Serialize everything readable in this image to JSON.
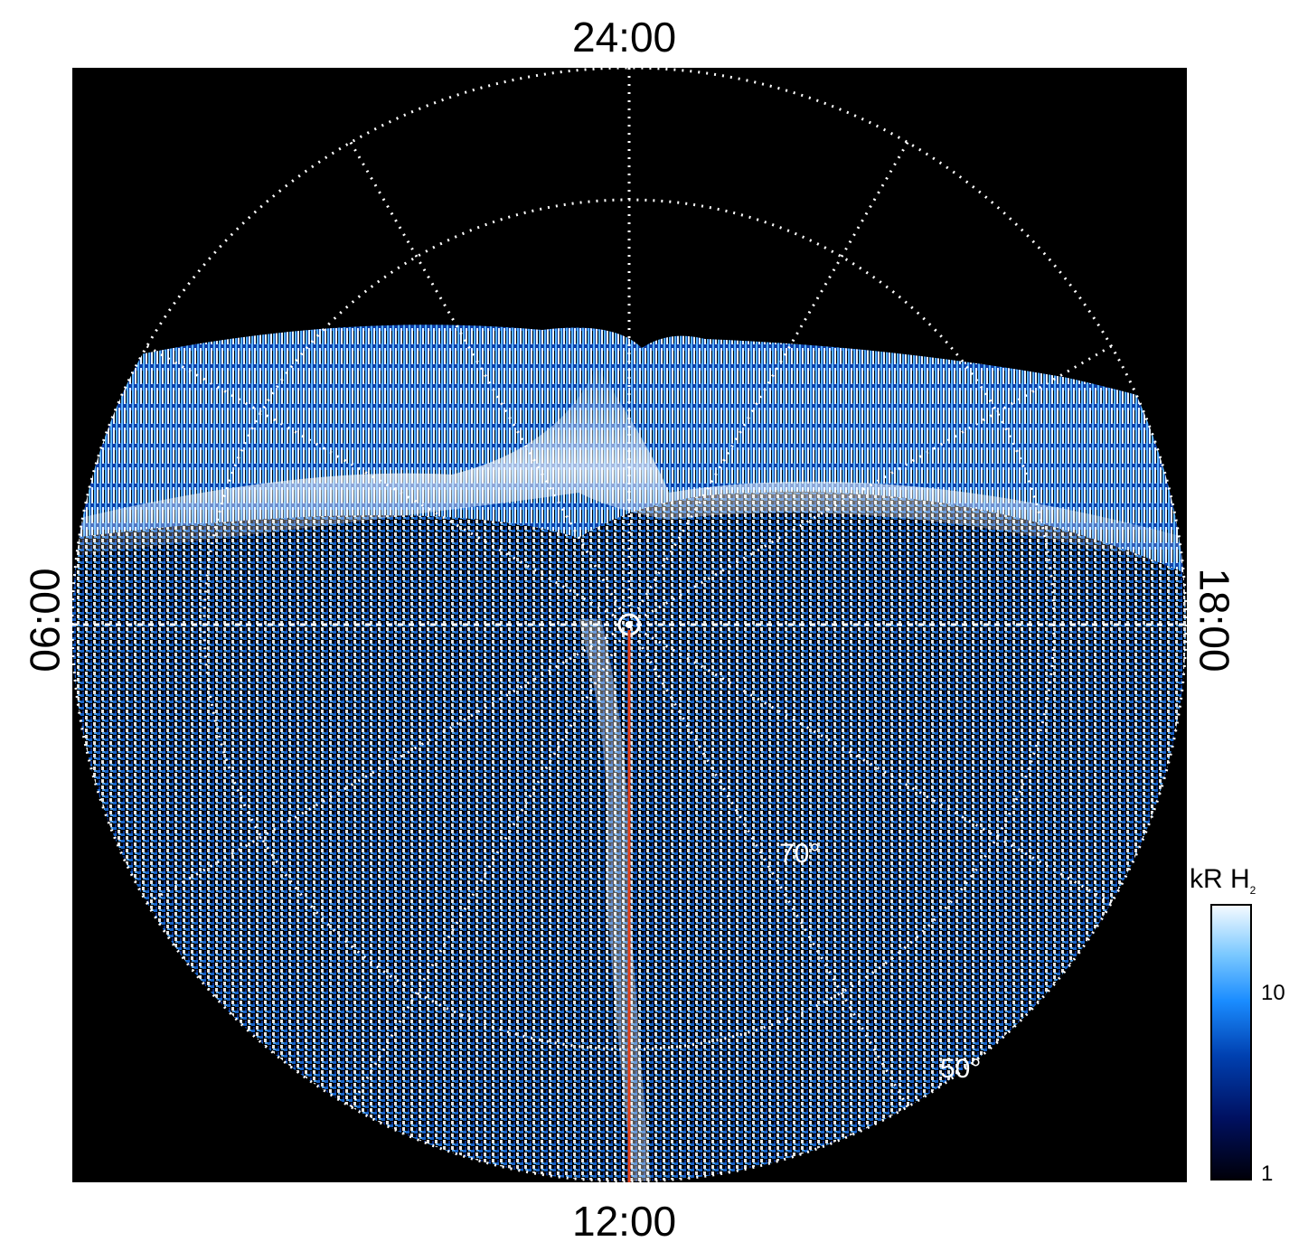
{
  "mlt_labels": {
    "top": "24:00",
    "bottom": "12:00",
    "left": "06:00",
    "right": "18:00"
  },
  "latitude_labels": {
    "inner": "70°",
    "outer": "50°"
  },
  "colorbar": {
    "title": "kR H",
    "title_subscript": "2",
    "ticks": [
      "10",
      "1"
    ],
    "colors": [
      "#00000a",
      "#001060",
      "#0040b0",
      "#1a8cff",
      "#7ac8ff",
      "#f4faff"
    ]
  },
  "colors": {
    "background": "#000000",
    "grid": "#ffffff",
    "meridian_line": "#e0401a"
  }
}
